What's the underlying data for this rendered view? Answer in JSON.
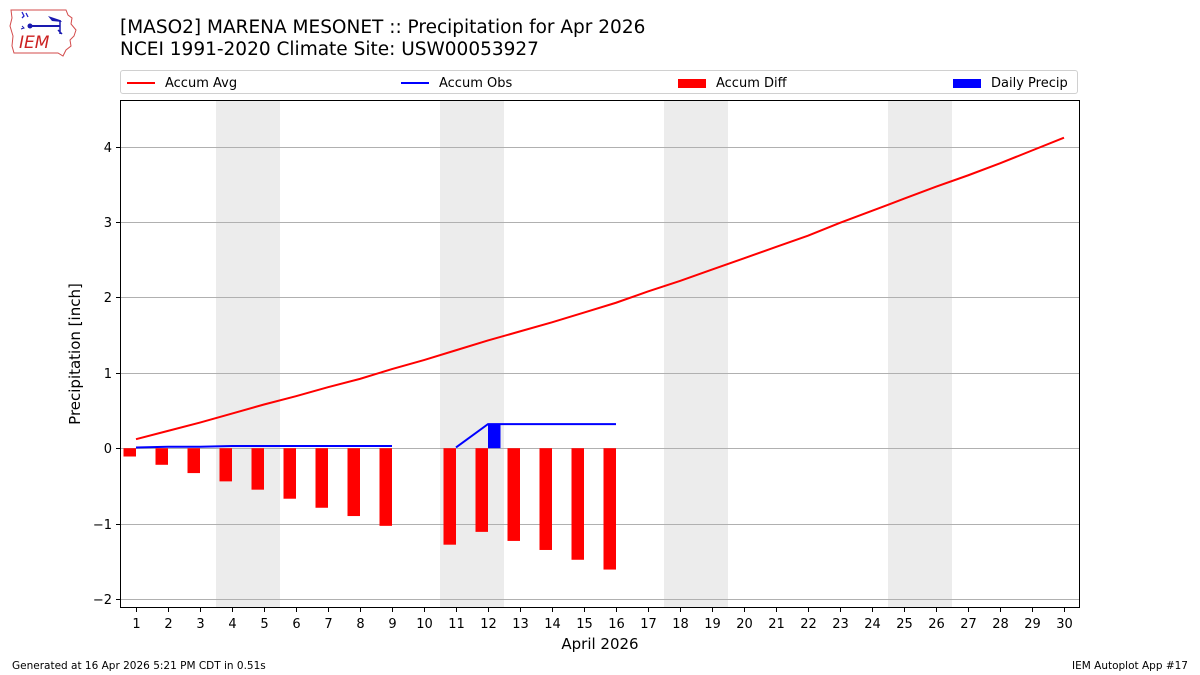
{
  "header": {
    "title_line1": "[MASO2] MARENA MESONET :: Precipitation for Apr 2026",
    "title_line2": "NCEI 1991-2020 Climate Site: USW00053927",
    "logo_text": "IEM"
  },
  "legend": {
    "items": [
      {
        "label": "Accum Avg",
        "type": "line",
        "color": "#ff0000"
      },
      {
        "label": "Accum Obs",
        "type": "line",
        "color": "#0000ff"
      },
      {
        "label": "Accum Diff",
        "type": "bar",
        "color": "#ff0000"
      },
      {
        "label": "Daily Precip",
        "type": "bar",
        "color": "#0000ff"
      }
    ]
  },
  "footer": {
    "generated": "Generated at 16 Apr 2026 5:21 PM CDT in 0.51s",
    "app": "IEM Autoplot App #17"
  },
  "colors": {
    "avg": "#ff0000",
    "obs": "#0000ff",
    "diff": "#ff0000",
    "daily": "#0000ff",
    "weekend_shade": "#ececec",
    "grid": "#b0b0b0"
  },
  "chart_data": {
    "type": "bar",
    "title": "[MASO2] MARENA MESONET :: Precipitation for Apr 2026\nNCEI 1991-2020 Climate Site: USW00053927",
    "xlabel": "April 2026",
    "ylabel": "Precipitation [inch]",
    "ylim": [
      -2.12,
      4.62
    ],
    "xlim": [
      0.5,
      30.5
    ],
    "yticks": [
      -2,
      -1,
      0,
      1,
      2,
      3,
      4
    ],
    "ytick_labels": [
      "−2",
      "−1",
      "0",
      "1",
      "2",
      "3",
      "4"
    ],
    "grid": "y",
    "legend_position": "top",
    "categories": [
      1,
      2,
      3,
      4,
      5,
      6,
      7,
      8,
      9,
      10,
      11,
      12,
      13,
      14,
      15,
      16,
      17,
      18,
      19,
      20,
      21,
      22,
      23,
      24,
      25,
      26,
      27,
      28,
      29,
      30
    ],
    "weekend_shading": [
      [
        3.5,
        5.5
      ],
      [
        10.5,
        12.5
      ],
      [
        17.5,
        19.5
      ],
      [
        24.5,
        26.5
      ]
    ],
    "series": [
      {
        "name": "Accum Avg",
        "type": "line",
        "color": "#ff0000",
        "x": [
          1,
          2,
          3,
          4,
          5,
          6,
          7,
          8,
          9,
          10,
          11,
          12,
          13,
          14,
          15,
          16,
          17,
          18,
          19,
          20,
          21,
          22,
          23,
          24,
          25,
          26,
          27,
          28,
          29,
          30
        ],
        "values": [
          0.12,
          0.23,
          0.34,
          0.46,
          0.58,
          0.69,
          0.81,
          0.92,
          1.05,
          1.17,
          1.3,
          1.43,
          1.55,
          1.67,
          1.8,
          1.93,
          2.08,
          2.22,
          2.37,
          2.52,
          2.67,
          2.82,
          2.99,
          3.15,
          3.31,
          3.47,
          3.62,
          3.78,
          3.95,
          4.12
        ]
      },
      {
        "name": "Accum Obs",
        "type": "line",
        "color": "#0000ff",
        "segments": [
          {
            "x": [
              1,
              2,
              3,
              4,
              5,
              6,
              7,
              8,
              9
            ],
            "values": [
              0.01,
              0.02,
              0.02,
              0.03,
              0.03,
              0.03,
              0.03,
              0.03,
              0.03
            ]
          },
          {
            "x": [
              11,
              12,
              13,
              14,
              15,
              16
            ],
            "values": [
              0.01,
              0.32,
              0.32,
              0.32,
              0.32,
              0.32
            ]
          }
        ]
      },
      {
        "name": "Accum Diff",
        "type": "bar",
        "color": "#ff0000",
        "x": [
          1,
          2,
          3,
          4,
          5,
          6,
          7,
          8,
          9,
          11,
          12,
          13,
          14,
          15,
          16
        ],
        "values": [
          -0.11,
          -0.22,
          -0.33,
          -0.44,
          -0.55,
          -0.67,
          -0.79,
          -0.9,
          -1.03,
          -1.28,
          -1.11,
          -1.23,
          -1.35,
          -1.48,
          -1.61
        ]
      },
      {
        "name": "Daily Precip",
        "type": "bar",
        "color": "#0000ff",
        "x": [
          12
        ],
        "values": [
          0.32
        ]
      }
    ]
  }
}
